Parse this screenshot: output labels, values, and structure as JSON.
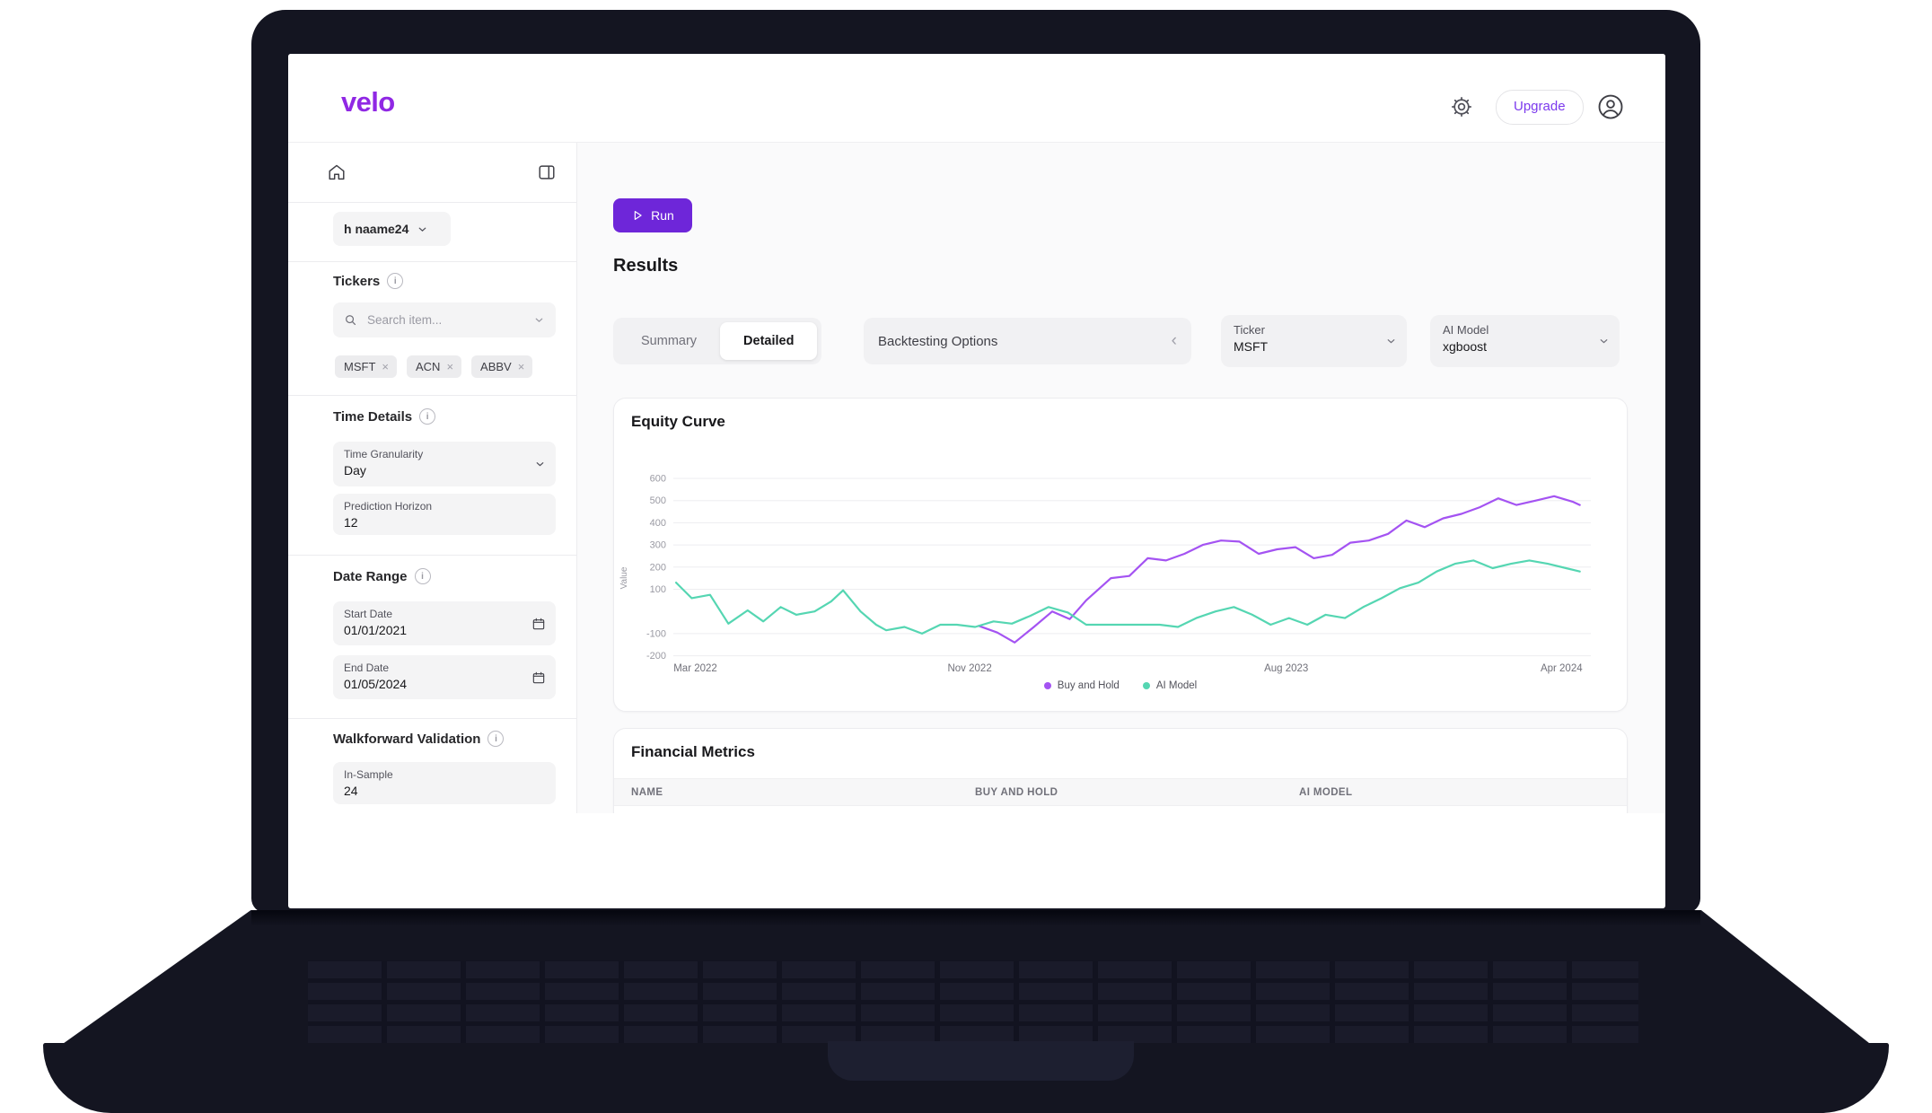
{
  "header": {
    "logo": "velo",
    "upgrade_label": "Upgrade"
  },
  "sidebar": {
    "project_selector": "h naame24",
    "tickers_title": "Tickers",
    "search_placeholder": "Search item...",
    "chips": [
      "MSFT",
      "ACN",
      "ABBV"
    ],
    "remove_glyph": "×",
    "time_details_title": "Time Details",
    "time_granularity_label": "Time Granularity",
    "time_granularity_value": "Day",
    "prediction_horizon_label": "Prediction Horizon",
    "prediction_horizon_value": "12",
    "date_range_title": "Date Range",
    "start_date_label": "Start Date",
    "start_date_value": "01/01/2021",
    "end_date_label": "End Date",
    "end_date_value": "01/05/2024",
    "walkforward_title": "Walkforward Validation",
    "in_sample_label": "In-Sample",
    "in_sample_value": "24",
    "info_glyph": "i"
  },
  "main": {
    "run_label": "Run",
    "results_title": "Results",
    "tab_summary": "Summary",
    "tab_detailed": "Detailed",
    "backtesting_label": "Backtesting Options",
    "backtesting_collapse_glyph": "‹",
    "ticker_label": "Ticker",
    "ticker_value": "MSFT",
    "ai_model_label": "AI Model",
    "ai_model_value": "xgboost",
    "metrics_title": "Financial Metrics",
    "metrics_columns": [
      "NAME",
      "BUY AND HOLD",
      "AI MODEL"
    ]
  },
  "colors": {
    "brand_purple": "#9028e4",
    "run_button_purple": "#6e26d9",
    "upgrade_purple": "#7c3aed",
    "buy_and_hold_line": "#a453f2",
    "ai_model_line": "#55d6b2"
  },
  "chart_data": {
    "type": "line",
    "title": "Equity Curve",
    "ylabel": "Value",
    "y_ticks": [
      600,
      500,
      400,
      300,
      200,
      100,
      -100,
      -200
    ],
    "ylim": [
      -250,
      650
    ],
    "grid": true,
    "legend_position": "bottom",
    "x_ticks": [
      {
        "label": "Mar 2022",
        "x": 0.024
      },
      {
        "label": "Nov 2022",
        "x": 0.323
      },
      {
        "label": "Aug 2023",
        "x": 0.668
      },
      {
        "label": "Apr 2024",
        "x": 0.968
      }
    ],
    "series": [
      {
        "name": "Buy and Hold",
        "color": "#a453f2",
        "points": [
          [
            0.333,
            -65
          ],
          [
            0.353,
            -95
          ],
          [
            0.372,
            -140
          ],
          [
            0.393,
            -70
          ],
          [
            0.413,
            0
          ],
          [
            0.432,
            -35
          ],
          [
            0.45,
            50
          ],
          [
            0.477,
            150
          ],
          [
            0.497,
            160
          ],
          [
            0.517,
            240
          ],
          [
            0.537,
            230
          ],
          [
            0.557,
            260
          ],
          [
            0.577,
            300
          ],
          [
            0.597,
            320
          ],
          [
            0.617,
            315
          ],
          [
            0.638,
            260
          ],
          [
            0.658,
            280
          ],
          [
            0.678,
            290
          ],
          [
            0.698,
            240
          ],
          [
            0.718,
            255
          ],
          [
            0.738,
            310
          ],
          [
            0.758,
            320
          ],
          [
            0.779,
            350
          ],
          [
            0.799,
            410
          ],
          [
            0.819,
            380
          ],
          [
            0.839,
            420
          ],
          [
            0.859,
            440
          ],
          [
            0.879,
            470
          ],
          [
            0.899,
            510
          ],
          [
            0.919,
            480
          ],
          [
            0.94,
            500
          ],
          [
            0.96,
            520
          ],
          [
            0.98,
            495
          ],
          [
            0.988,
            480
          ]
        ]
      },
      {
        "name": "AI Model",
        "color": "#55d6b2",
        "points": [
          [
            0.003,
            130
          ],
          [
            0.02,
            60
          ],
          [
            0.04,
            75
          ],
          [
            0.06,
            -55
          ],
          [
            0.081,
            5
          ],
          [
            0.098,
            -45
          ],
          [
            0.117,
            20
          ],
          [
            0.134,
            -15
          ],
          [
            0.154,
            0
          ],
          [
            0.172,
            45
          ],
          [
            0.185,
            95
          ],
          [
            0.204,
            0
          ],
          [
            0.221,
            -60
          ],
          [
            0.232,
            -85
          ],
          [
            0.252,
            -70
          ],
          [
            0.271,
            -100
          ],
          [
            0.291,
            -60
          ],
          [
            0.309,
            -60
          ],
          [
            0.329,
            -70
          ],
          [
            0.349,
            -45
          ],
          [
            0.369,
            -55
          ],
          [
            0.389,
            -20
          ],
          [
            0.409,
            20
          ],
          [
            0.43,
            -5
          ],
          [
            0.45,
            -60
          ],
          [
            0.47,
            -60
          ],
          [
            0.49,
            -60
          ],
          [
            0.51,
            -60
          ],
          [
            0.53,
            -60
          ],
          [
            0.55,
            -70
          ],
          [
            0.57,
            -30
          ],
          [
            0.591,
            0
          ],
          [
            0.611,
            20
          ],
          [
            0.631,
            -15
          ],
          [
            0.651,
            -60
          ],
          [
            0.671,
            -30
          ],
          [
            0.691,
            -60
          ],
          [
            0.711,
            -15
          ],
          [
            0.732,
            -30
          ],
          [
            0.752,
            20
          ],
          [
            0.772,
            60
          ],
          [
            0.792,
            105
          ],
          [
            0.812,
            130
          ],
          [
            0.832,
            180
          ],
          [
            0.852,
            215
          ],
          [
            0.872,
            230
          ],
          [
            0.893,
            195
          ],
          [
            0.913,
            215
          ],
          [
            0.933,
            230
          ],
          [
            0.953,
            215
          ],
          [
            0.973,
            195
          ],
          [
            0.988,
            180
          ]
        ]
      }
    ]
  }
}
